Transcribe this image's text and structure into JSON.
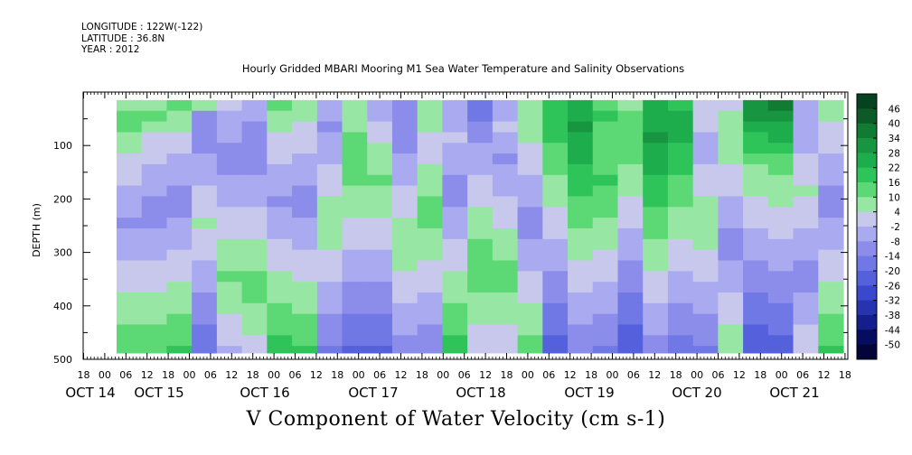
{
  "header": {
    "longitude": "LONGITUDE : 122W(-122)",
    "latitude": "LATITUDE : 36.8N",
    "year": "YEAR : 2012"
  },
  "colorbar": {
    "labels": [
      "46",
      "40",
      "34",
      "28",
      "22",
      "16",
      "10",
      "4",
      "-2",
      "-8",
      "-14",
      "-20",
      "-26",
      "-32",
      "-38",
      "-44",
      "-50"
    ],
    "colors": [
      "#054220",
      "#0b5a28",
      "#117a33",
      "#179540",
      "#1ead4c",
      "#2ec45a",
      "#5cd875",
      "#98e6a4",
      "#c8c8ec",
      "#aaaaf0",
      "#8c8cea",
      "#6f78e4",
      "#5460dc",
      "#3a48cc",
      "#2634b0",
      "#141e8c",
      "#060c60"
    ]
  },
  "chart_data": {
    "type": "heatmap",
    "title": "Hourly Gridded MBARI Mooring M1 Sea Water Temperature and Salinity Observations",
    "xlabel": "V Component of Water Velocity (cm s-1)",
    "ylabel": "DEPTH (m)",
    "ylim": [
      500,
      0
    ],
    "ytick_labels": [
      "100",
      "200",
      "300",
      "400",
      "500"
    ],
    "hour_tick_labels": [
      "18",
      "00",
      "06",
      "12",
      "18",
      "00",
      "06",
      "12",
      "18",
      "00",
      "06",
      "12",
      "18",
      "00",
      "06",
      "12",
      "18",
      "00",
      "06",
      "12",
      "18",
      "00",
      "06",
      "12",
      "18",
      "00",
      "06",
      "12",
      "18",
      "00",
      "06",
      "12",
      "18",
      "00",
      "06",
      "12",
      "18"
    ],
    "date_labels": [
      "OCT 14",
      "OCT 15",
      "OCT 16",
      "OCT 17",
      "OCT 18",
      "OCT 19",
      "OCT 20",
      "OCT 21"
    ],
    "value_range": [
      -50,
      46
    ],
    "depth_rows": [
      "20",
      "40",
      "60",
      "80",
      "100",
      "120",
      "140",
      "160",
      "180",
      "200",
      "220",
      "240",
      "260",
      "280",
      "300",
      "320",
      "340",
      "360",
      "380",
      "400",
      "420",
      "440",
      "460",
      "480"
    ],
    "columns": [
      "OCT 14 18",
      "OCT 15 00",
      "OCT 15 06",
      "OCT 15 12",
      "OCT 15 18",
      "OCT 16 00",
      "OCT 16 06",
      "OCT 16 12",
      "OCT 16 18",
      "OCT 17 00",
      "OCT 17 06",
      "OCT 17 12",
      "OCT 17 18",
      "OCT 18 00",
      "OCT 18 06",
      "OCT 18 12",
      "OCT 18 18",
      "OCT 19 00",
      "OCT 19 06",
      "OCT 19 12",
      "OCT 19 18",
      "OCT 20 00",
      "OCT 20 06",
      "OCT 20 12",
      "OCT 20 18",
      "OCT 21 00",
      "OCT 21 06",
      "OCT 21 12",
      "OCT 21 18"
    ],
    "values": [
      [
        8,
        8,
        10,
        8,
        -2,
        -8,
        10,
        8,
        -6,
        6,
        -6,
        -10,
        8,
        -8,
        -20,
        -6,
        6,
        16,
        24,
        14,
        8,
        22,
        18,
        0,
        2,
        30,
        34,
        -4,
        6
      ],
      [
        12,
        10,
        8,
        -10,
        -4,
        -8,
        8,
        4,
        -8,
        4,
        -4,
        -12,
        6,
        -6,
        -18,
        -4,
        4,
        18,
        26,
        16,
        10,
        24,
        22,
        2,
        4,
        28,
        32,
        -6,
        4
      ],
      [
        10,
        6,
        4,
        -14,
        -6,
        -10,
        4,
        2,
        -10,
        8,
        0,
        -14,
        4,
        -4,
        -14,
        -2,
        6,
        18,
        28,
        14,
        12,
        26,
        24,
        0,
        6,
        24,
        26,
        -8,
        2
      ],
      [
        6,
        2,
        0,
        -12,
        -8,
        -12,
        2,
        0,
        -8,
        10,
        2,
        -12,
        2,
        -2,
        -10,
        -6,
        4,
        16,
        26,
        12,
        14,
        28,
        22,
        -4,
        8,
        20,
        22,
        -6,
        0
      ],
      [
        4,
        0,
        -2,
        -10,
        -10,
        -14,
        0,
        -2,
        -6,
        12,
        4,
        -10,
        0,
        -4,
        -8,
        -8,
        2,
        14,
        24,
        10,
        12,
        26,
        20,
        -6,
        6,
        16,
        18,
        -4,
        -2
      ],
      [
        2,
        -2,
        -4,
        -8,
        -12,
        -12,
        -2,
        -4,
        -4,
        14,
        6,
        -8,
        2,
        -6,
        -6,
        -10,
        0,
        12,
        22,
        12,
        10,
        24,
        18,
        -4,
        4,
        12,
        14,
        -2,
        -4
      ],
      [
        0,
        -4,
        -6,
        -6,
        -10,
        -10,
        -4,
        -6,
        -2,
        12,
        8,
        -6,
        4,
        -8,
        -4,
        -8,
        -2,
        10,
        20,
        14,
        8,
        22,
        16,
        -2,
        2,
        8,
        10,
        0,
        -6
      ],
      [
        -2,
        -6,
        -8,
        -4,
        -8,
        -8,
        -6,
        -8,
        0,
        10,
        10,
        -4,
        6,
        -10,
        -2,
        -6,
        -4,
        8,
        18,
        16,
        6,
        20,
        14,
        0,
        0,
        6,
        8,
        2,
        -8
      ],
      [
        -4,
        -8,
        -10,
        -2,
        -6,
        -6,
        -8,
        -10,
        2,
        8,
        8,
        -2,
        8,
        -12,
        0,
        -4,
        -6,
        6,
        16,
        14,
        4,
        18,
        12,
        2,
        -2,
        4,
        6,
        4,
        -10
      ],
      [
        -6,
        -10,
        -12,
        0,
        -4,
        -4,
        -10,
        -12,
        4,
        6,
        6,
        0,
        10,
        -10,
        2,
        -2,
        -8,
        4,
        14,
        12,
        2,
        16,
        10,
        4,
        -4,
        2,
        4,
        2,
        -12
      ],
      [
        -8,
        -12,
        -10,
        2,
        -2,
        -2,
        -8,
        -10,
        6,
        4,
        4,
        2,
        12,
        -8,
        4,
        0,
        -10,
        2,
        12,
        10,
        0,
        14,
        8,
        6,
        -6,
        0,
        2,
        0,
        -10
      ],
      [
        -10,
        -10,
        -8,
        4,
        0,
        0,
        -6,
        -8,
        8,
        2,
        2,
        4,
        10,
        -6,
        6,
        2,
        -12,
        0,
        10,
        8,
        -2,
        12,
        6,
        8,
        -8,
        -2,
        0,
        -2,
        -8
      ],
      [
        -8,
        -8,
        -6,
        2,
        2,
        2,
        -4,
        -6,
        6,
        0,
        0,
        6,
        8,
        -4,
        8,
        4,
        -10,
        -2,
        8,
        6,
        -4,
        10,
        4,
        6,
        -10,
        -4,
        -2,
        -4,
        -6
      ],
      [
        -6,
        -6,
        -4,
        0,
        4,
        4,
        -2,
        -4,
        4,
        -2,
        -2,
        8,
        6,
        -2,
        10,
        6,
        -8,
        -4,
        6,
        4,
        -6,
        8,
        2,
        4,
        -12,
        -6,
        -4,
        -6,
        -4
      ],
      [
        -4,
        -4,
        -2,
        -2,
        6,
        6,
        0,
        -2,
        2,
        -4,
        -4,
        6,
        4,
        0,
        12,
        8,
        -6,
        -6,
        4,
        2,
        -8,
        6,
        0,
        2,
        -10,
        -8,
        -6,
        -8,
        -2
      ],
      [
        -2,
        -2,
        0,
        -4,
        8,
        8,
        2,
        0,
        0,
        -6,
        -6,
        4,
        2,
        2,
        14,
        10,
        -4,
        -8,
        2,
        0,
        -10,
        4,
        -2,
        0,
        -8,
        -10,
        -8,
        -10,
        0
      ],
      [
        0,
        0,
        2,
        -6,
        10,
        10,
        4,
        2,
        -2,
        -8,
        -8,
        2,
        0,
        4,
        12,
        12,
        -2,
        -10,
        0,
        -2,
        -12,
        2,
        -4,
        -2,
        -6,
        -12,
        -10,
        -12,
        2
      ],
      [
        2,
        2,
        4,
        -8,
        8,
        12,
        6,
        4,
        -4,
        -10,
        -10,
        0,
        -2,
        6,
        10,
        10,
        0,
        -12,
        -2,
        -4,
        -14,
        0,
        -6,
        -4,
        -4,
        -14,
        -12,
        -10,
        4
      ],
      [
        4,
        4,
        6,
        -10,
        6,
        10,
        8,
        6,
        -6,
        -12,
        -12,
        -2,
        -4,
        8,
        8,
        8,
        2,
        -14,
        -4,
        -6,
        -16,
        -2,
        -8,
        -6,
        -2,
        -16,
        -14,
        -8,
        6
      ],
      [
        6,
        6,
        8,
        -12,
        4,
        8,
        10,
        8,
        -8,
        -14,
        -14,
        -4,
        -6,
        10,
        6,
        6,
        4,
        -16,
        -6,
        -8,
        -18,
        -4,
        -10,
        -8,
        0,
        -18,
        -16,
        -6,
        8
      ],
      [
        8,
        8,
        10,
        -14,
        2,
        6,
        12,
        10,
        -10,
        -16,
        -16,
        -6,
        -8,
        12,
        4,
        4,
        6,
        -18,
        -8,
        -10,
        -20,
        -6,
        -12,
        -10,
        2,
        -20,
        -18,
        -4,
        10
      ],
      [
        10,
        10,
        12,
        -16,
        0,
        4,
        14,
        12,
        -12,
        -18,
        -18,
        -8,
        -10,
        14,
        2,
        2,
        8,
        -20,
        -10,
        -12,
        -22,
        -8,
        -14,
        -12,
        4,
        -22,
        -20,
        -2,
        12
      ],
      [
        12,
        12,
        14,
        -18,
        -2,
        2,
        16,
        14,
        -14,
        -20,
        -20,
        -10,
        -12,
        16,
        0,
        0,
        10,
        -22,
        -12,
        -14,
        -24,
        -10,
        -16,
        -14,
        6,
        -24,
        -22,
        0,
        14
      ],
      [
        14,
        14,
        16,
        -20,
        -4,
        0,
        18,
        16,
        -16,
        -22,
        -22,
        -12,
        -14,
        18,
        -2,
        -2,
        12,
        -24,
        -14,
        -16,
        -26,
        -12,
        -18,
        -16,
        8,
        -26,
        -24,
        2,
        16
      ]
    ]
  }
}
